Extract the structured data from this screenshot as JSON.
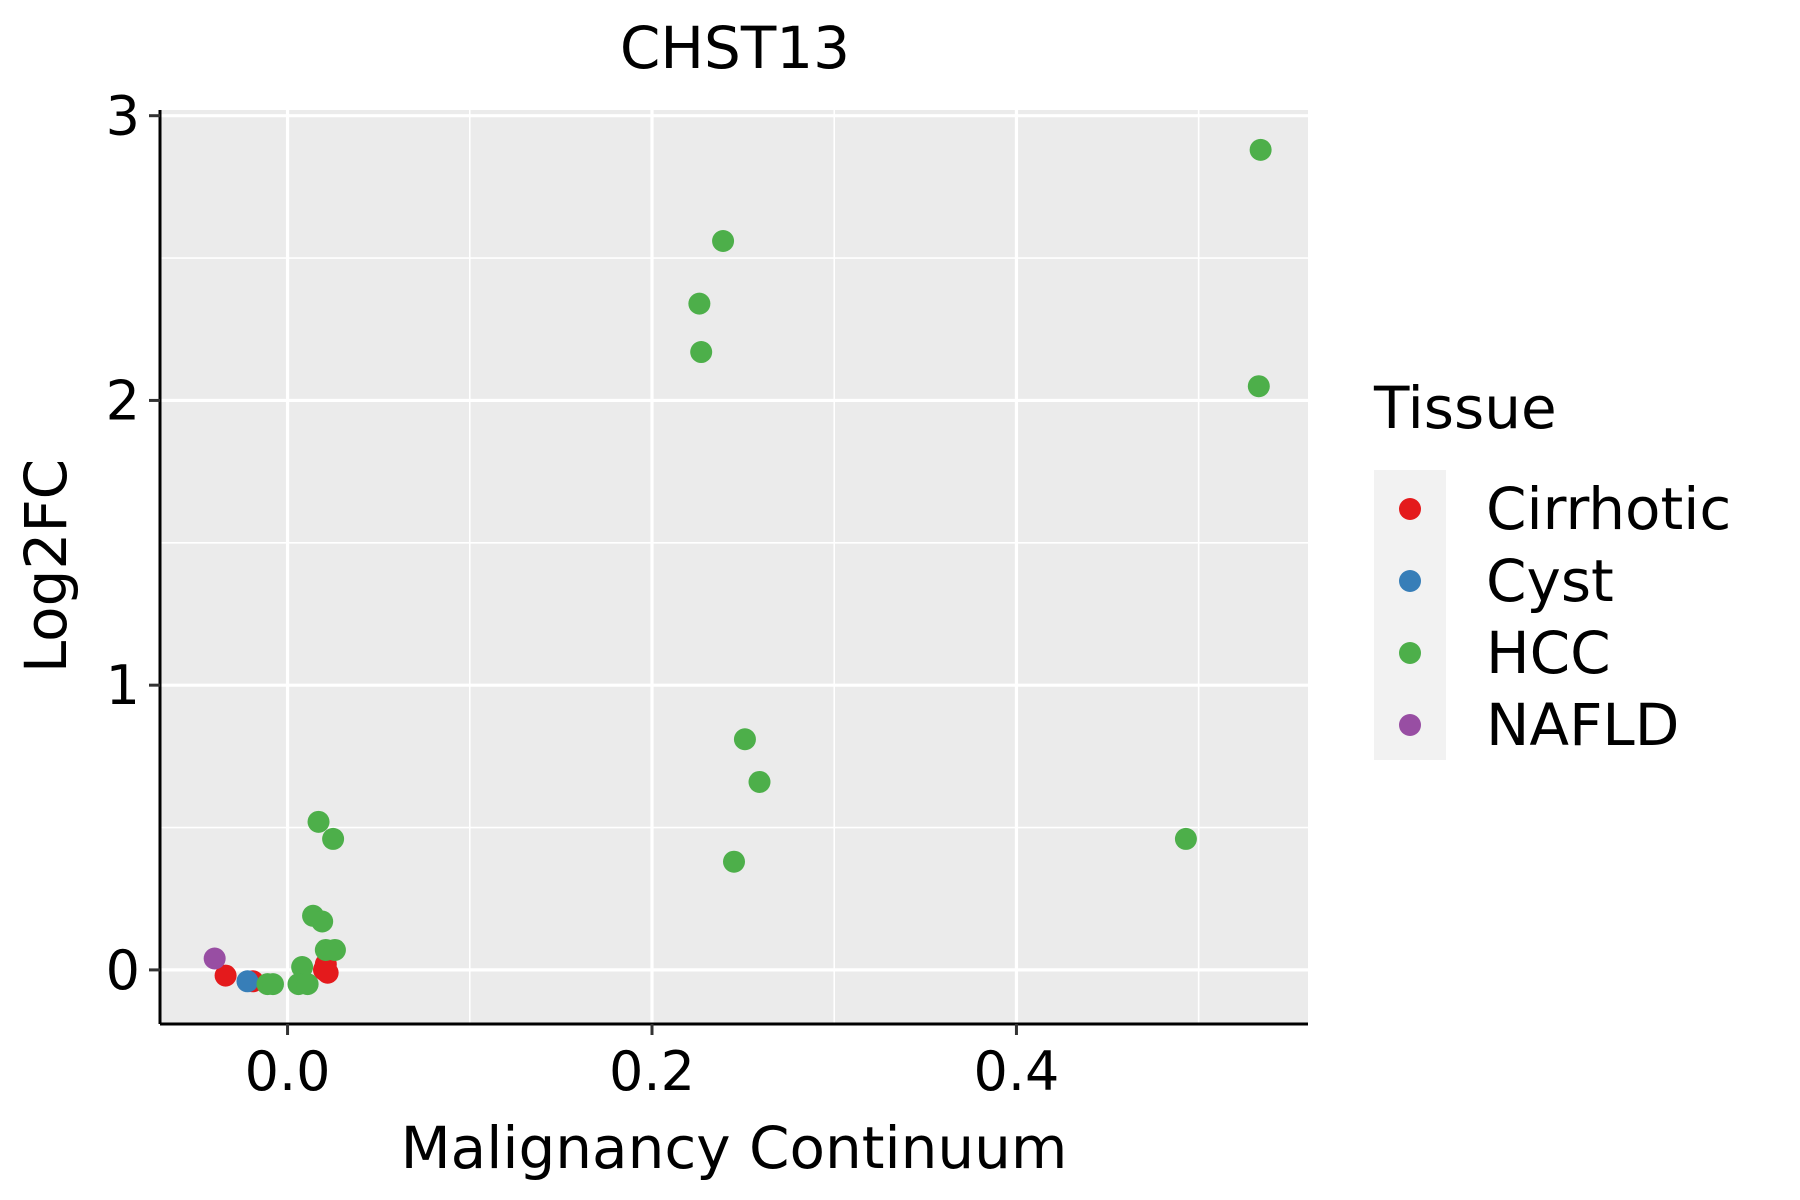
{
  "chart_data": {
    "type": "scatter",
    "title": "CHST13",
    "xlabel": "Malignancy Continuum",
    "ylabel": "Log2FC",
    "xlim": [
      -0.07,
      0.56
    ],
    "ylim": [
      -0.19,
      3.02
    ],
    "x_ticks": [
      0.0,
      0.2,
      0.4
    ],
    "x_tick_labels": [
      "0.0",
      "0.2",
      "0.4"
    ],
    "y_ticks": [
      0,
      1,
      2,
      3
    ],
    "y_tick_labels": [
      "0",
      "1",
      "2",
      "3"
    ],
    "grid": true,
    "legend": {
      "title": "Tissue",
      "placement": "right"
    },
    "series": [
      {
        "name": "Cirrhotic",
        "color": "#E41A1C",
        "points": [
          {
            "x": -0.034,
            "y": -0.02
          },
          {
            "x": -0.019,
            "y": -0.04
          },
          {
            "x": 0.02,
            "y": 0.0
          },
          {
            "x": 0.021,
            "y": 0.02
          },
          {
            "x": 0.022,
            "y": -0.01
          }
        ]
      },
      {
        "name": "Cyst",
        "color": "#377EB8",
        "points": [
          {
            "x": -0.022,
            "y": -0.04
          }
        ]
      },
      {
        "name": "HCC",
        "color": "#4DAF4A",
        "points": [
          {
            "x": 0.534,
            "y": 2.88
          },
          {
            "x": 0.239,
            "y": 2.56
          },
          {
            "x": 0.226,
            "y": 2.34
          },
          {
            "x": 0.227,
            "y": 2.17
          },
          {
            "x": 0.533,
            "y": 2.05
          },
          {
            "x": 0.251,
            "y": 0.81
          },
          {
            "x": 0.259,
            "y": 0.66
          },
          {
            "x": 0.493,
            "y": 0.46
          },
          {
            "x": 0.245,
            "y": 0.38
          },
          {
            "x": 0.017,
            "y": 0.52
          },
          {
            "x": 0.025,
            "y": 0.46
          },
          {
            "x": 0.014,
            "y": 0.19
          },
          {
            "x": 0.019,
            "y": 0.17
          },
          {
            "x": 0.021,
            "y": 0.07
          },
          {
            "x": 0.026,
            "y": 0.07
          },
          {
            "x": 0.008,
            "y": 0.01
          },
          {
            "x": -0.011,
            "y": -0.05
          },
          {
            "x": -0.008,
            "y": -0.05
          },
          {
            "x": 0.006,
            "y": -0.05
          },
          {
            "x": 0.011,
            "y": -0.05
          }
        ]
      },
      {
        "name": "NAFLD",
        "color": "#984EA3",
        "points": [
          {
            "x": -0.04,
            "y": 0.04
          }
        ]
      }
    ]
  }
}
